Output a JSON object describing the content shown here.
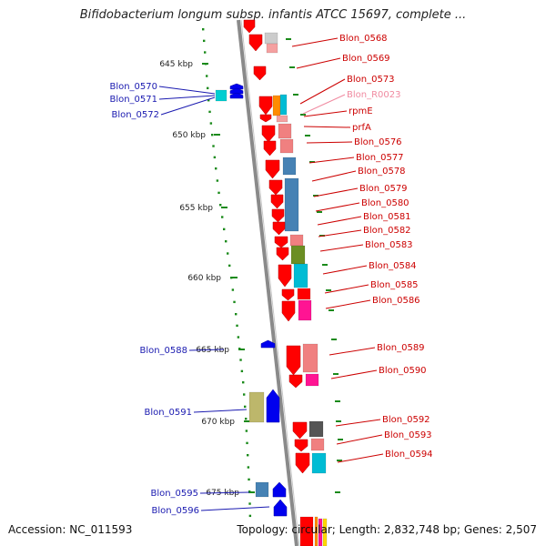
{
  "title": "Bifidobacterium longum subsp. infantis ATCC 15697, complete ...",
  "accession": "Accession: NC_011593",
  "topology": "Topology: circular; Length: 2,832,748 bp; Genes: 2,507",
  "colors": {
    "backbone": "#8a8a8a",
    "scale_dot": "#1a8a1a",
    "left_label": "#1a1ab0",
    "right_label": "#cc0000",
    "rna_label": "#f08aa0",
    "strand_minus": "#ff0000",
    "strand_plus": "#0000ee"
  },
  "scale_ticks": [
    "645 kbp",
    "650 kbp",
    "655 kbp",
    "660 kbp",
    "665 kbp",
    "670 kbp",
    "675 kbp"
  ],
  "left_genes": [
    "Blon_0570",
    "Blon_0571",
    "Blon_0572",
    "Blon_0588",
    "Blon_0591",
    "Blon_0595",
    "Blon_0596"
  ],
  "right_genes": [
    "Blon_0568",
    "Blon_0569",
    "Blon_0573",
    "Blon_R0023",
    "rpmE",
    "prfA",
    "Blon_0576",
    "Blon_0577",
    "Blon_0578",
    "Blon_0579",
    "Blon_0580",
    "Blon_0581",
    "Blon_0582",
    "Blon_0583",
    "Blon_0584",
    "Blon_0585",
    "Blon_0586",
    "Blon_0589",
    "Blon_0590",
    "Blon_0592",
    "Blon_0593",
    "Blon_0594"
  ]
}
